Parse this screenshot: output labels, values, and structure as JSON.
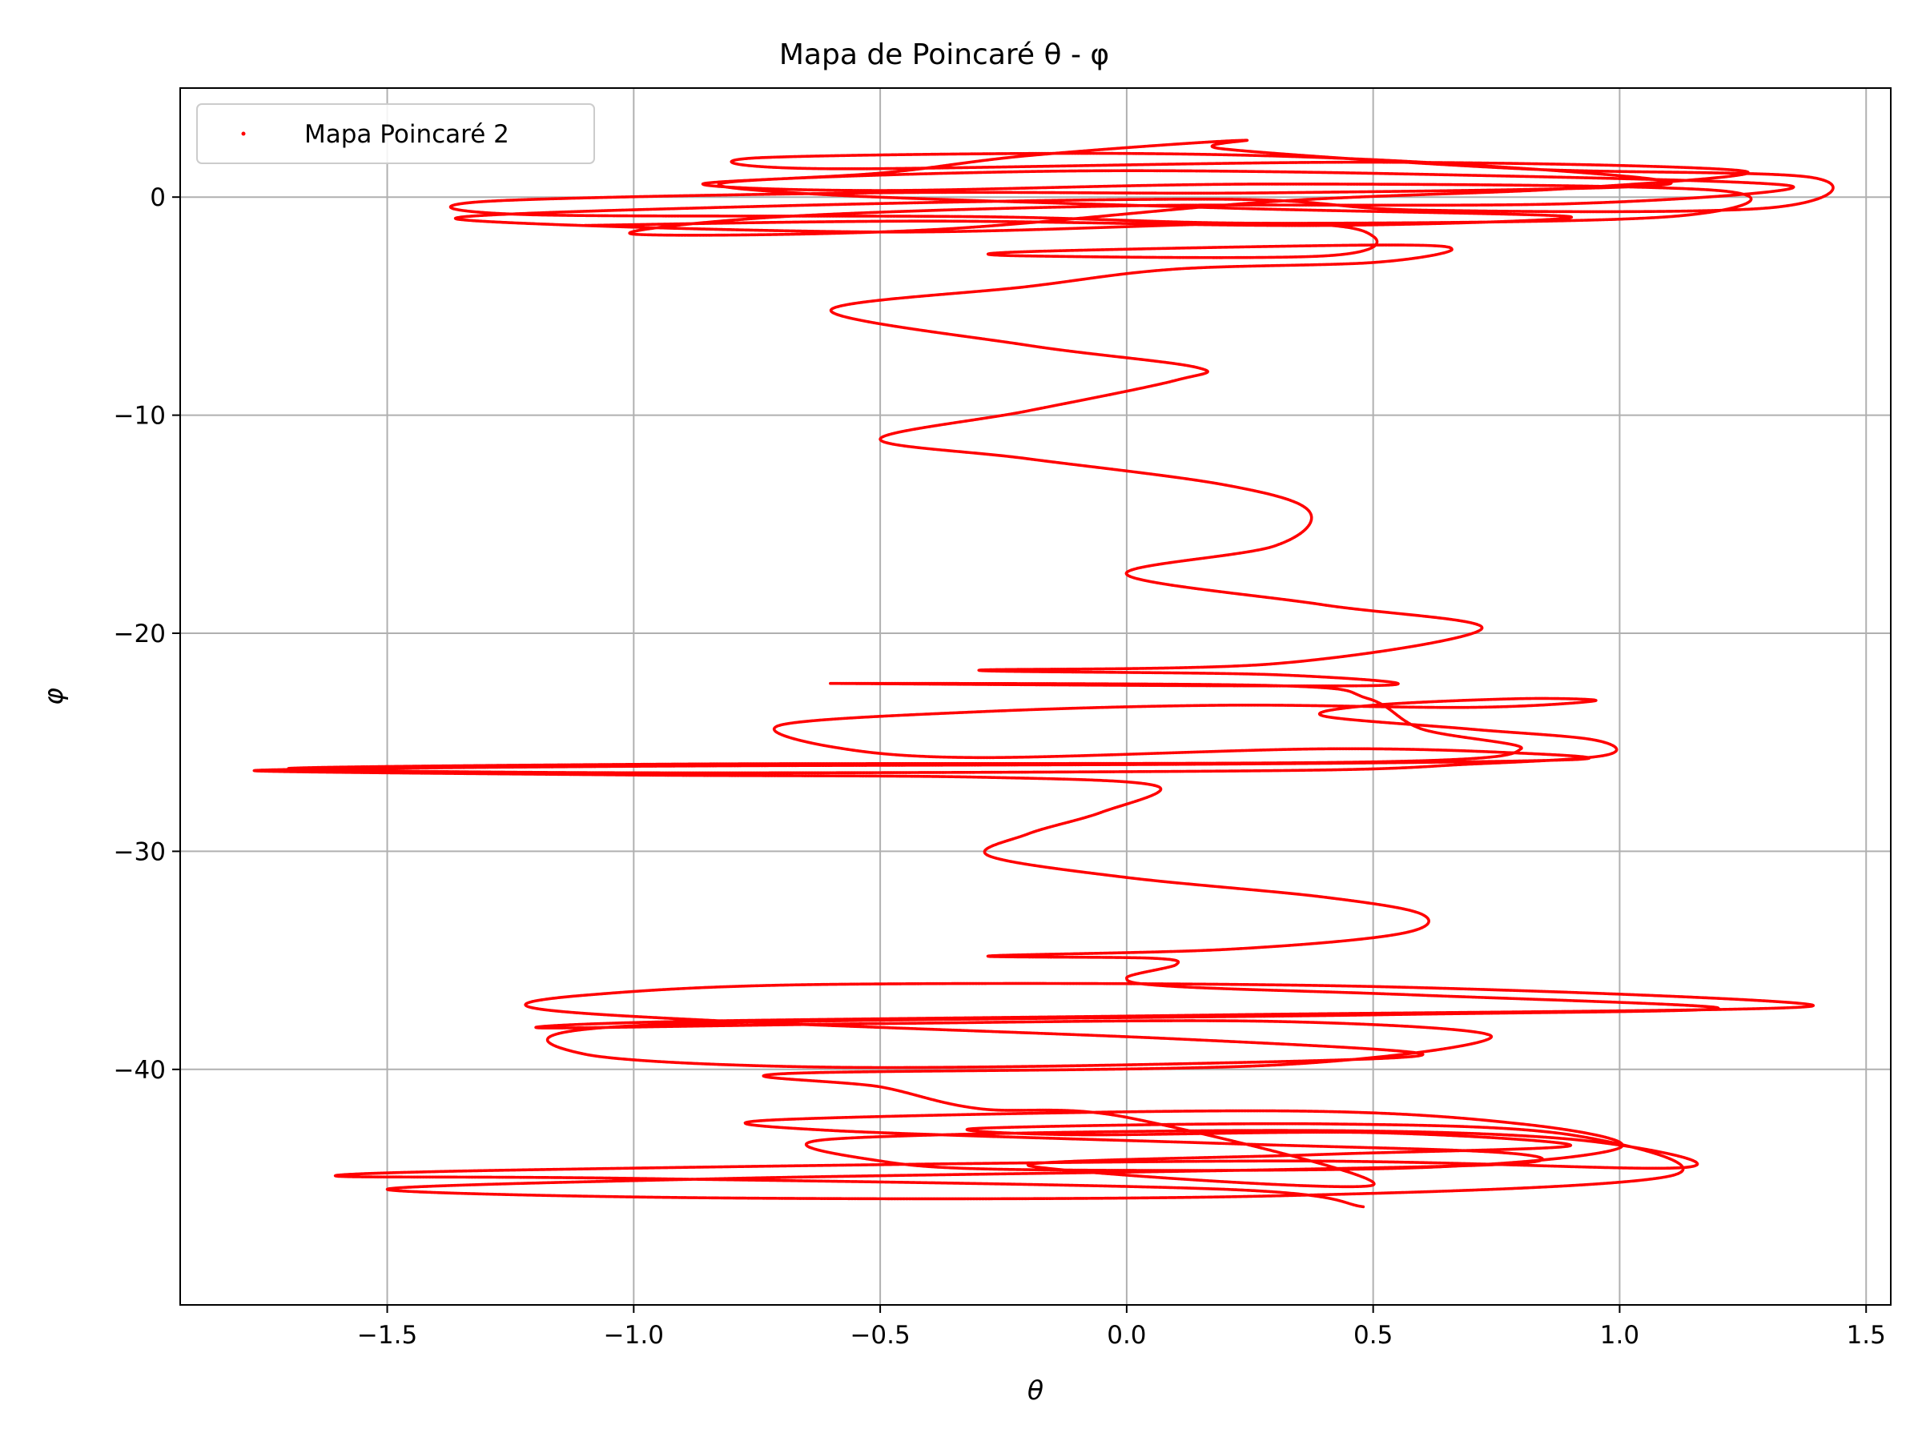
{
  "chart_data": {
    "type": "scatter",
    "title": "Mapa de Poincaré θ - φ",
    "xlabel": "θ",
    "ylabel": "φ",
    "xlim": [
      -1.92,
      1.55
    ],
    "ylim": [
      -50.8,
      5
    ],
    "x_ticks": [
      -1.5,
      -1.0,
      -0.5,
      0.0,
      0.5,
      1.0,
      1.5
    ],
    "x_tick_labels": [
      "−1.5",
      "−1.0",
      "−0.5",
      "0.0",
      "0.5",
      "1.0",
      "1.5"
    ],
    "y_ticks": [
      0,
      -10,
      -20,
      -30,
      -40
    ],
    "y_tick_labels": [
      "0",
      "−10",
      "−20",
      "−30",
      "−40"
    ],
    "grid": true,
    "legend_position": "top-left",
    "series": [
      {
        "name": "Mapa Poincaré 2",
        "color": "#ff0000",
        "marker": "point",
        "path": [
          [
            0.48,
            -46.3
          ],
          [
            0.2,
            -45.5
          ],
          [
            -1.0,
            -45.0
          ],
          [
            -1.6,
            -44.9
          ],
          [
            -1.2,
            -44.6
          ],
          [
            0.3,
            -44.2
          ],
          [
            1.13,
            -44.5
          ],
          [
            0.9,
            -43.2
          ],
          [
            0.3,
            -42.8
          ],
          [
            -0.6,
            -43.2
          ],
          [
            -0.5,
            -44.2
          ],
          [
            -0.2,
            -44.6
          ],
          [
            0.6,
            -44.5
          ],
          [
            1.0,
            -43.6
          ],
          [
            0.8,
            -42.5
          ],
          [
            0.3,
            -41.9
          ],
          [
            -0.7,
            -42.3
          ],
          [
            -0.6,
            -42.8
          ],
          [
            0.2,
            -43.4
          ],
          [
            0.75,
            -43.8
          ],
          [
            0.8,
            -44.3
          ],
          [
            0.3,
            -44.6
          ],
          [
            -0.8,
            -45.0
          ],
          [
            -1.5,
            -45.5
          ],
          [
            -0.8,
            -45.9
          ],
          [
            0.3,
            -45.8
          ],
          [
            1.1,
            -44.9
          ],
          [
            0.9,
            -43.0
          ],
          [
            0.4,
            -42.5
          ],
          [
            -0.3,
            -42.7
          ],
          [
            -0.1,
            -43.0
          ],
          [
            0.5,
            -42.9
          ],
          [
            0.9,
            -43.5
          ],
          [
            0.4,
            -43.9
          ],
          [
            -0.2,
            -44.4
          ],
          [
            0.5,
            -45.3
          ],
          [
            0.0,
            -42.2
          ],
          [
            -0.3,
            -41.8
          ],
          [
            -0.5,
            -40.8
          ],
          [
            -0.7,
            -40.2
          ],
          [
            0.3,
            -39.8
          ],
          [
            0.74,
            -38.5
          ],
          [
            0.3,
            -37.8
          ],
          [
            -0.5,
            -37.9
          ],
          [
            -1.18,
            -38.1
          ],
          [
            -0.9,
            -37.8
          ],
          [
            0.2,
            -37.5
          ],
          [
            1.39,
            -37.1
          ],
          [
            0.5,
            -36.2
          ],
          [
            -0.6,
            -36.1
          ],
          [
            -1.1,
            -36.6
          ],
          [
            -1.2,
            -37.2
          ],
          [
            -0.8,
            -37.8
          ],
          [
            0.1,
            -38.6
          ],
          [
            0.6,
            -39.3
          ],
          [
            0.2,
            -39.7
          ],
          [
            -0.6,
            -39.9
          ],
          [
            -1.1,
            -39.3
          ],
          [
            -1.0,
            -38.0
          ],
          [
            0.5,
            -37.5
          ],
          [
            1.2,
            -37.2
          ],
          [
            0.6,
            -36.6
          ],
          [
            0.1,
            -36.2
          ],
          [
            0.0,
            -35.8
          ],
          [
            0.1,
            -35.2
          ],
          [
            0.05,
            -34.9
          ],
          [
            -0.28,
            -34.8
          ],
          [
            0.2,
            -34.5
          ],
          [
            0.55,
            -33.8
          ],
          [
            0.6,
            -32.9
          ],
          [
            0.4,
            -32.1
          ],
          [
            0.0,
            -31.2
          ],
          [
            -0.28,
            -30.2
          ],
          [
            -0.2,
            -29.2
          ],
          [
            -0.05,
            -28.2
          ],
          [
            0.06,
            -27.0
          ],
          [
            -0.3,
            -26.6
          ],
          [
            -1.0,
            -26.5
          ],
          [
            -1.77,
            -26.3
          ],
          [
            -1.0,
            -26.1
          ],
          [
            0.2,
            -26.0
          ],
          [
            0.9,
            -25.8
          ],
          [
            0.8,
            -25.5
          ],
          [
            0.4,
            -25.3
          ],
          [
            -0.3,
            -25.7
          ],
          [
            -0.6,
            -25.2
          ],
          [
            -0.7,
            -24.2
          ],
          [
            -0.3,
            -23.6
          ],
          [
            0.2,
            -23.3
          ],
          [
            0.7,
            -23.4
          ],
          [
            0.95,
            -23.1
          ],
          [
            0.8,
            -23.0
          ],
          [
            0.5,
            -23.3
          ],
          [
            0.4,
            -23.8
          ],
          [
            0.7,
            -24.4
          ],
          [
            0.95,
            -24.9
          ],
          [
            0.97,
            -25.6
          ],
          [
            0.7,
            -26.0
          ],
          [
            0.3,
            -26.3
          ],
          [
            -1.0,
            -26.4
          ],
          [
            -1.7,
            -26.2
          ],
          [
            -0.9,
            -26.0
          ],
          [
            0.5,
            -25.9
          ],
          [
            0.8,
            -25.3
          ],
          [
            0.6,
            -24.4
          ],
          [
            0.49,
            -23.0
          ],
          [
            0.3,
            -22.4
          ],
          [
            -0.6,
            -22.3
          ],
          [
            0.5,
            -22.4
          ],
          [
            0.3,
            -21.9
          ],
          [
            -0.3,
            -21.7
          ],
          [
            0.3,
            -21.4
          ],
          [
            0.72,
            -19.8
          ],
          [
            0.4,
            -18.7
          ],
          [
            0.0,
            -17.3
          ],
          [
            0.3,
            -16.0
          ],
          [
            0.37,
            -14.4
          ],
          [
            0.2,
            -13.2
          ],
          [
            -0.2,
            -12.0
          ],
          [
            -0.5,
            -11.1
          ],
          [
            -0.2,
            -9.8
          ],
          [
            0.1,
            -8.4
          ],
          [
            0.14,
            -7.8
          ],
          [
            -0.2,
            -6.8
          ],
          [
            -0.6,
            -5.2
          ],
          [
            -0.2,
            -4.1
          ],
          [
            0.1,
            -3.3
          ],
          [
            0.5,
            -3.0
          ],
          [
            0.66,
            -2.4
          ],
          [
            0.5,
            -2.2
          ],
          [
            -0.2,
            -2.5
          ],
          [
            -0.2,
            -2.7
          ],
          [
            0.4,
            -2.7
          ],
          [
            0.5,
            -1.8
          ],
          [
            0.3,
            -1.2
          ],
          [
            -0.5,
            -1.6
          ],
          [
            -1.36,
            -1.0
          ],
          [
            -0.7,
            -0.4
          ],
          [
            0.2,
            -0.1
          ],
          [
            0.6,
            -0.6
          ],
          [
            1.3,
            -0.5
          ],
          [
            1.39,
            0.9
          ],
          [
            0.8,
            1.3
          ],
          [
            0.2,
            2.2
          ],
          [
            0.23,
            2.6
          ],
          [
            -0.2,
            1.9
          ],
          [
            -0.5,
            1.1
          ],
          [
            -0.86,
            0.6
          ],
          [
            -0.5,
            0.3
          ],
          [
            0.3,
            0.6
          ],
          [
            1.2,
            0.3
          ],
          [
            1.1,
            -0.9
          ],
          [
            0.3,
            -1.2
          ],
          [
            -0.3,
            -0.9
          ],
          [
            -1.22,
            -0.8
          ],
          [
            -1.3,
            -0.2
          ],
          [
            -0.5,
            0.2
          ],
          [
            0.3,
            0.2
          ],
          [
            1.1,
            0.6
          ],
          [
            0.6,
            1.6
          ],
          [
            0.0,
            2.0
          ],
          [
            -0.75,
            1.8
          ],
          [
            -0.6,
            1.3
          ],
          [
            0.5,
            1.6
          ],
          [
            1.25,
            1.2
          ],
          [
            0.9,
            0.4
          ],
          [
            0.3,
            -0.2
          ],
          [
            -0.4,
            -1.5
          ],
          [
            -1.0,
            -1.7
          ],
          [
            -0.7,
            -0.9
          ],
          [
            0.0,
            -0.4
          ],
          [
            0.9,
            -0.3
          ],
          [
            1.35,
            0.5
          ],
          [
            0.7,
            1.0
          ],
          [
            -0.1,
            1.2
          ],
          [
            -0.8,
            0.7
          ],
          [
            -0.6,
            0.1
          ],
          [
            0.2,
            -0.5
          ],
          [
            0.9,
            -0.9
          ],
          [
            0.4,
            -1.3
          ],
          [
            -0.4,
            -1.1
          ],
          [
            -1.1,
            -1.3
          ]
        ]
      }
    ]
  }
}
